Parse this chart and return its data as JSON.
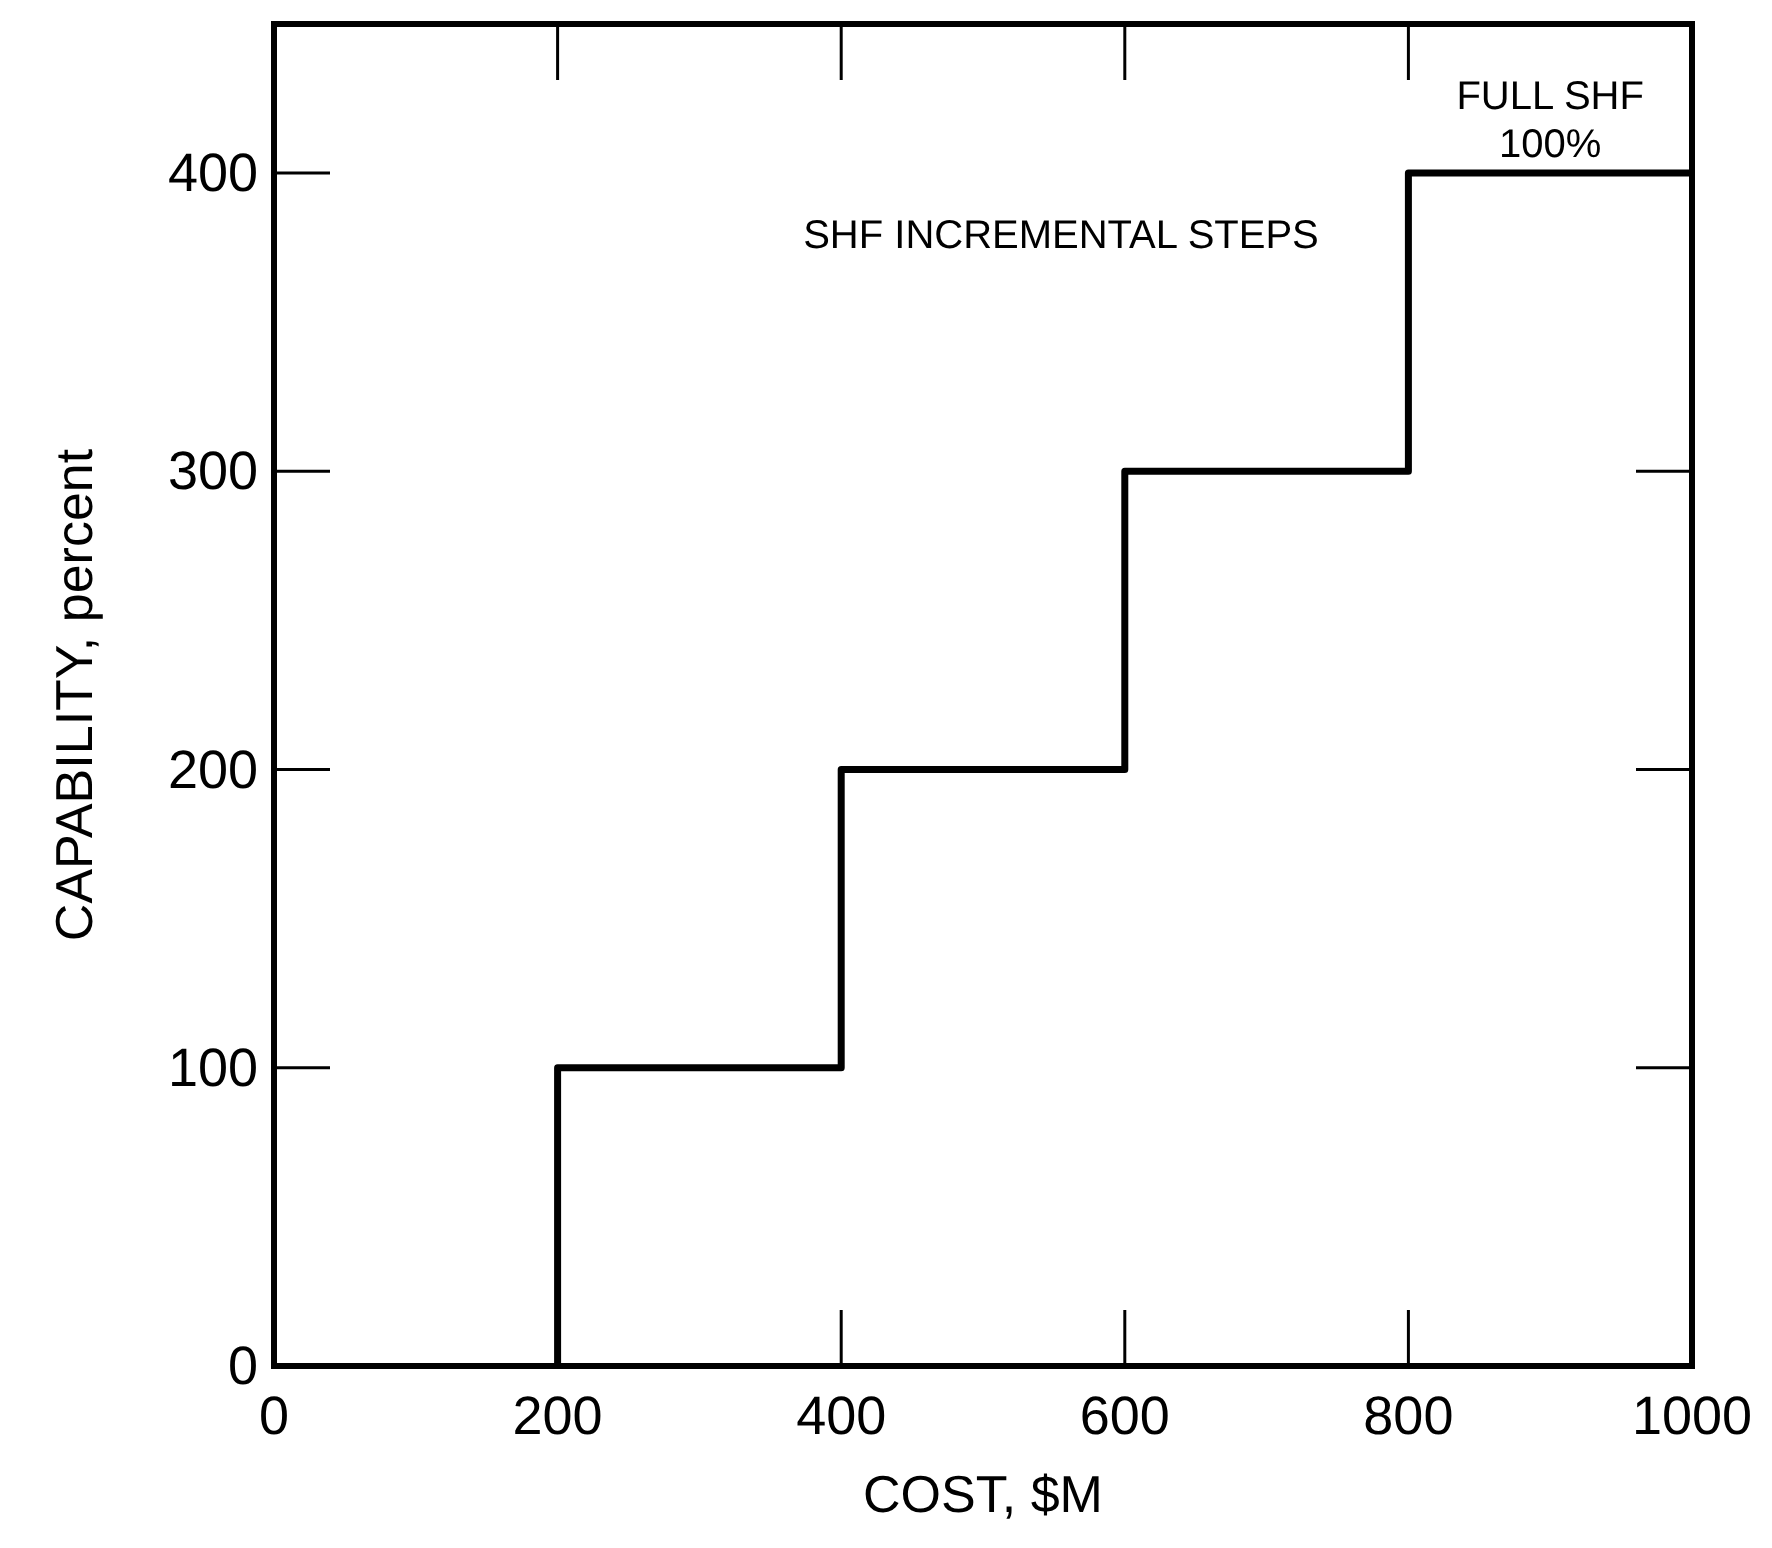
{
  "chart_data": {
    "type": "step",
    "xlabel": "COST, $M",
    "ylabel": "CAPABILITY, percent",
    "x": [
      200,
      200,
      400,
      600,
      800,
      1000
    ],
    "series": [
      {
        "color": "#000000",
        "values": [
          0,
          100,
          200,
          300,
          400,
          400
        ]
      }
    ],
    "xlim": [
      0,
      1000
    ],
    "xticks": [
      0,
      200,
      400,
      600,
      800,
      1000
    ],
    "ylim": [
      0,
      450
    ],
    "yticks": [
      0,
      100,
      200,
      300,
      400
    ],
    "annotations": [
      "SHF INCREMENTAL STEPS",
      {
        "text": "FULL SHF\n100%",
        "x": 900,
        "y": 400
      }
    ],
    "grid": false,
    "marker": "none",
    "line_style": "solid"
  }
}
